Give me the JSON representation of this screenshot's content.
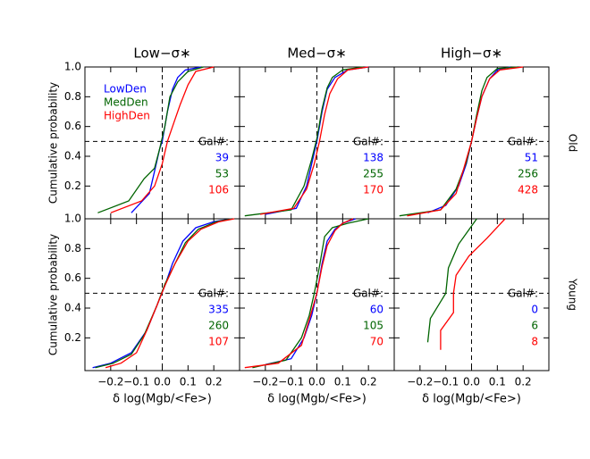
{
  "chart_data": {
    "type": "line",
    "columns": [
      "Low−σ∗",
      "Med−σ∗",
      "High−σ∗"
    ],
    "rows": [
      "Old",
      "Young"
    ],
    "xlabel": "δ log(Mgb/<Fe>)",
    "ylabel": "Cumulative probability",
    "count_label": "Gal#:",
    "series": [
      {
        "name": "LowDen",
        "color": "#0000ff"
      },
      {
        "name": "MedDen",
        "color": "#006400"
      },
      {
        "name": "HighDen",
        "color": "#ff0000"
      }
    ],
    "xlim": [
      -0.3,
      0.3
    ],
    "ylim": [
      -0.02,
      1.0
    ],
    "xticks": [
      {
        "value": -0.2,
        "label": "−0.2"
      },
      {
        "value": -0.1,
        "label": "−0.1"
      },
      {
        "value": 0,
        "label": "0.0"
      },
      0.1,
      0.2
    ],
    "yticks": [
      0.2,
      0.4,
      0.6,
      0.8,
      {
        "value": 1,
        "label": "1.0"
      }
    ],
    "ref_x": 0,
    "ref_y": 0.5,
    "panels": [
      {
        "curves": [
          {
            "count": 39,
            "x": [
              -0.12,
              -0.05,
              -0.03,
              -0.01,
              0.0,
              0.02,
              0.04,
              0.06,
              0.09,
              0.15
            ],
            "y": [
              0.02,
              0.15,
              0.3,
              0.45,
              0.5,
              0.7,
              0.85,
              0.93,
              0.98,
              1.0
            ]
          },
          {
            "count": 53,
            "x": [
              -0.25,
              -0.13,
              -0.07,
              -0.03,
              -0.01,
              0.01,
              0.03,
              0.06,
              0.1,
              0.16
            ],
            "y": [
              0.02,
              0.1,
              0.25,
              0.32,
              0.45,
              0.6,
              0.8,
              0.9,
              0.97,
              1.0
            ]
          },
          {
            "count": 106,
            "x": [
              -0.2,
              -0.08,
              -0.03,
              0.0,
              0.02,
              0.05,
              0.07,
              0.1,
              0.13,
              0.2
            ],
            "y": [
              0.02,
              0.1,
              0.2,
              0.35,
              0.5,
              0.65,
              0.75,
              0.88,
              0.97,
              1.0
            ]
          }
        ]
      },
      {
        "curves": [
          {
            "count": 138,
            "x": [
              -0.2,
              -0.08,
              -0.04,
              -0.02,
              0.0,
              0.02,
              0.04,
              0.07,
              0.12,
              0.2
            ],
            "y": [
              0.01,
              0.05,
              0.2,
              0.35,
              0.5,
              0.7,
              0.85,
              0.93,
              0.98,
              1.0
            ]
          },
          {
            "count": 255,
            "x": [
              -0.28,
              -0.1,
              -0.05,
              -0.02,
              0.0,
              0.02,
              0.04,
              0.06,
              0.1,
              0.18
            ],
            "y": [
              0.0,
              0.04,
              0.2,
              0.38,
              0.52,
              0.72,
              0.86,
              0.93,
              0.98,
              1.0
            ]
          },
          {
            "count": 170,
            "x": [
              -0.22,
              -0.09,
              -0.04,
              -0.01,
              0.01,
              0.03,
              0.05,
              0.08,
              0.12,
              0.2
            ],
            "y": [
              0.01,
              0.05,
              0.18,
              0.35,
              0.5,
              0.68,
              0.82,
              0.92,
              0.98,
              1.0
            ]
          }
        ]
      },
      {
        "curves": [
          {
            "count": 51,
            "x": [
              -0.17,
              -0.1,
              -0.05,
              -0.02,
              0.0,
              0.02,
              0.04,
              0.07,
              0.1,
              0.15
            ],
            "y": [
              0.02,
              0.07,
              0.2,
              0.35,
              0.5,
              0.66,
              0.8,
              0.92,
              0.98,
              1.0
            ]
          },
          {
            "count": 256,
            "x": [
              -0.28,
              -0.12,
              -0.06,
              -0.02,
              0.0,
              0.02,
              0.04,
              0.06,
              0.1,
              0.18
            ],
            "y": [
              0.0,
              0.04,
              0.18,
              0.36,
              0.5,
              0.68,
              0.84,
              0.93,
              0.99,
              1.0
            ]
          },
          {
            "count": 428,
            "x": [
              -0.25,
              -0.12,
              -0.06,
              -0.03,
              0.0,
              0.02,
              0.04,
              0.07,
              0.11,
              0.2
            ],
            "y": [
              0.0,
              0.04,
              0.15,
              0.32,
              0.5,
              0.66,
              0.8,
              0.92,
              0.98,
              1.0
            ]
          }
        ]
      },
      {
        "curves": [
          {
            "count": 335,
            "x": [
              -0.27,
              -0.2,
              -0.12,
              -0.06,
              -0.02,
              0.01,
              0.04,
              0.08,
              0.13,
              0.2,
              0.27
            ],
            "y": [
              0.0,
              0.03,
              0.1,
              0.25,
              0.42,
              0.55,
              0.7,
              0.85,
              0.94,
              0.98,
              1.0
            ]
          },
          {
            "count": 260,
            "x": [
              -0.26,
              -0.19,
              -0.12,
              -0.07,
              -0.02,
              0.01,
              0.05,
              0.09,
              0.14,
              0.21,
              0.27
            ],
            "y": [
              0.0,
              0.03,
              0.09,
              0.22,
              0.42,
              0.56,
              0.7,
              0.84,
              0.93,
              0.98,
              1.0
            ]
          },
          {
            "count": 107,
            "x": [
              -0.22,
              -0.16,
              -0.1,
              -0.06,
              -0.02,
              0.01,
              0.05,
              0.1,
              0.15,
              0.22,
              0.28
            ],
            "y": [
              0.0,
              0.03,
              0.1,
              0.25,
              0.42,
              0.55,
              0.7,
              0.85,
              0.93,
              0.98,
              1.0
            ]
          }
        ]
      },
      {
        "curves": [
          {
            "count": 60,
            "x": [
              -0.2,
              -0.1,
              -0.05,
              -0.02,
              0.0,
              0.02,
              0.04,
              0.07,
              0.1,
              0.15
            ],
            "y": [
              0.02,
              0.06,
              0.2,
              0.35,
              0.5,
              0.7,
              0.85,
              0.93,
              0.97,
              1.0
            ]
          },
          {
            "count": 105,
            "x": [
              -0.25,
              -0.12,
              -0.06,
              -0.03,
              -0.01,
              0.01,
              0.03,
              0.06,
              0.12,
              0.2
            ],
            "y": [
              0.0,
              0.05,
              0.2,
              0.35,
              0.5,
              0.68,
              0.88,
              0.94,
              0.97,
              1.0
            ]
          },
          {
            "count": 70,
            "x": [
              -0.28,
              -0.15,
              -0.06,
              -0.03,
              0.0,
              0.02,
              0.04,
              0.07,
              0.1,
              0.14
            ],
            "y": [
              0.0,
              0.03,
              0.15,
              0.32,
              0.5,
              0.68,
              0.82,
              0.92,
              0.97,
              1.0
            ]
          }
        ]
      },
      {
        "curves": [
          {
            "count": 0,
            "x": [],
            "y": []
          },
          {
            "count": 6,
            "x": [
              -0.17,
              -0.16,
              -0.1,
              -0.09,
              -0.05,
              0.02
            ],
            "y": [
              0.17,
              0.33,
              0.5,
              0.67,
              0.83,
              1.0
            ]
          },
          {
            "count": 8,
            "x": [
              -0.12,
              -0.12,
              -0.07,
              -0.07,
              -0.06,
              -0.01,
              0.06,
              0.13
            ],
            "y": [
              0.12,
              0.25,
              0.37,
              0.5,
              0.62,
              0.75,
              0.87,
              1.0
            ]
          }
        ]
      }
    ]
  }
}
